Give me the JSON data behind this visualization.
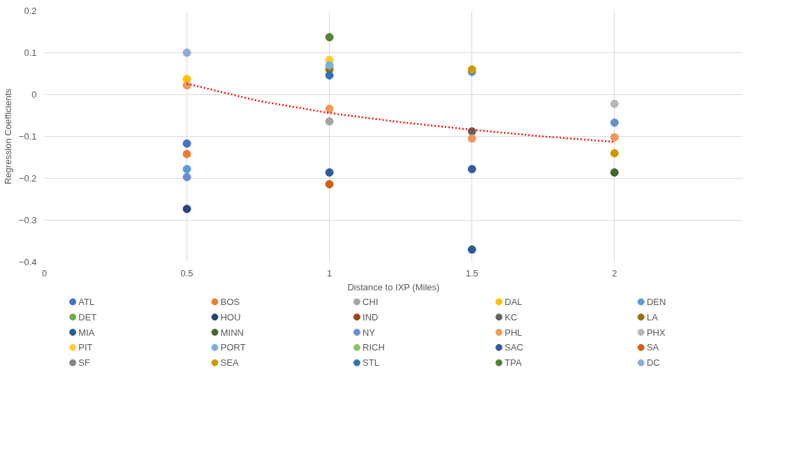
{
  "chart_data": {
    "type": "scatter",
    "xlabel": "Distance to IXP (Miles)",
    "ylabel": "Regression Coefficients",
    "xlim": [
      0,
      2.45
    ],
    "xticks": [
      0,
      0.5,
      1,
      1.5,
      2
    ],
    "ylim": [
      -0.4,
      0.2
    ],
    "yticks": [
      -0.4,
      -0.3,
      -0.2,
      -0.1,
      0,
      0.1,
      0.2
    ],
    "grid": true,
    "legend": "bottom",
    "marker": "circle",
    "series": [
      {
        "name": "ATL",
        "color": "#4472c4",
        "x": [
          0.5
        ],
        "values": [
          -0.117
        ]
      },
      {
        "name": "BOS",
        "color": "#ed7d31",
        "x": [
          0.5
        ],
        "values": [
          -0.142
        ]
      },
      {
        "name": "CHI",
        "color": "#a5a5a5",
        "x": [
          1
        ],
        "values": [
          -0.064
        ]
      },
      {
        "name": "DAL",
        "color": "#ffc000",
        "x": [
          0.5
        ],
        "values": [
          0.037
        ]
      },
      {
        "name": "DEN",
        "color": "#5b9bd5",
        "x": [
          0.5
        ],
        "values": [
          -0.178
        ]
      },
      {
        "name": "DET",
        "color": "#70ad47"
      },
      {
        "name": "HOU",
        "color": "#264478",
        "x": [
          0.5
        ],
        "values": [
          -0.273
        ]
      },
      {
        "name": "IND",
        "color": "#9e480e"
      },
      {
        "name": "KC",
        "color": "#636363",
        "x": [
          1.5
        ],
        "values": [
          -0.088
        ]
      },
      {
        "name": "LA",
        "color": "#997300",
        "x": [
          1
        ],
        "values": [
          0.06
        ]
      },
      {
        "name": "MIA",
        "color": "#255e91",
        "x": [
          1.5
        ],
        "values": [
          -0.37
        ]
      },
      {
        "name": "MINN",
        "color": "#43682b",
        "x": [
          2
        ],
        "values": [
          -0.186
        ]
      },
      {
        "name": "NY",
        "color": "#698ed0",
        "x": [
          0.5,
          1.5,
          2
        ],
        "values": [
          -0.197,
          0.054,
          -0.067
        ]
      },
      {
        "name": "PHL",
        "color": "#f1975a",
        "x": [
          0.5,
          1,
          1.5,
          2
        ],
        "values": [
          0.022,
          -0.034,
          -0.105,
          -0.102
        ]
      },
      {
        "name": "PHX",
        "color": "#b7b7b7",
        "x": [
          2
        ],
        "values": [
          -0.022
        ]
      },
      {
        "name": "PIT",
        "color": "#ffcd33",
        "x": [
          1
        ],
        "values": [
          0.083
        ]
      },
      {
        "name": "PORT",
        "color": "#7cafdd",
        "x": [
          1
        ],
        "values": [
          0.07
        ]
      },
      {
        "name": "RICH",
        "color": "#8cc168"
      },
      {
        "name": "SAC",
        "color": "#335aa1",
        "x": [
          1,
          1.5
        ],
        "values": [
          -0.186,
          -0.178
        ]
      },
      {
        "name": "SA",
        "color": "#d26012",
        "x": [
          1
        ],
        "values": [
          -0.214
        ]
      },
      {
        "name": "SF",
        "color": "#848484"
      },
      {
        "name": "SEA",
        "color": "#cc9a00",
        "x": [
          1.5,
          2
        ],
        "values": [
          0.06,
          -0.14
        ]
      },
      {
        "name": "STL",
        "color": "#2e75b6",
        "x": [
          1
        ],
        "values": [
          0.046
        ]
      },
      {
        "name": "TPA",
        "color": "#548235",
        "x": [
          1
        ],
        "values": [
          0.137
        ]
      },
      {
        "name": "DC",
        "color": "#8faadc",
        "x": [
          0.5
        ],
        "values": [
          0.1
        ]
      },
      {
        "type": "line",
        "color": "#ff0000",
        "line_style": "dotted",
        "marker": "none",
        "x": [
          0.5,
          0.75,
          1,
          1.25,
          1.5,
          1.75,
          2
        ],
        "values": [
          0.026,
          -0.015,
          -0.044,
          -0.066,
          -0.084,
          -0.1,
          -0.113
        ]
      }
    ]
  }
}
